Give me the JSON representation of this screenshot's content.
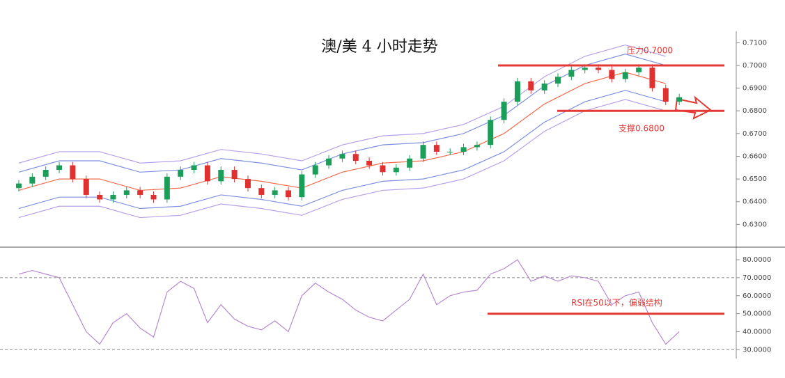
{
  "chart_data": [
    {
      "type": "candlestick",
      "title": "澳/美 4 小时走势",
      "open": [
        0.646,
        0.648,
        0.651,
        0.654,
        0.656,
        0.65,
        0.643,
        0.641,
        0.643,
        0.645,
        0.643,
        0.641,
        0.651,
        0.654,
        0.656,
        0.649,
        0.654,
        0.65,
        0.646,
        0.643,
        0.645,
        0.642,
        0.652,
        0.656,
        0.659,
        0.661,
        0.658,
        0.656,
        0.653,
        0.655,
        0.659,
        0.665,
        0.662,
        0.662,
        0.664,
        0.665,
        0.676,
        0.684,
        0.693,
        0.689,
        0.692,
        0.695,
        0.698,
        0.699,
        0.698,
        0.694,
        0.697,
        0.699,
        0.69,
        0.684
      ],
      "high": [
        0.6495,
        0.6525,
        0.6555,
        0.6575,
        0.6575,
        0.6515,
        0.6445,
        0.6445,
        0.6465,
        0.6465,
        0.6445,
        0.6525,
        0.6555,
        0.6575,
        0.6575,
        0.6555,
        0.6555,
        0.6515,
        0.6475,
        0.6465,
        0.6465,
        0.6535,
        0.6575,
        0.6605,
        0.6625,
        0.6625,
        0.6595,
        0.6575,
        0.6565,
        0.6605,
        0.6665,
        0.6665,
        0.6635,
        0.6655,
        0.6665,
        0.6775,
        0.6855,
        0.6945,
        0.6945,
        0.6935,
        0.6965,
        0.6995,
        0.7005,
        0.7005,
        0.6995,
        0.6985,
        0.7005,
        0.7005,
        0.6915,
        0.6875
      ],
      "low": [
        0.6445,
        0.6465,
        0.6495,
        0.6525,
        0.6485,
        0.6415,
        0.6395,
        0.6395,
        0.6415,
        0.6415,
        0.6395,
        0.6395,
        0.6495,
        0.6525,
        0.6475,
        0.6475,
        0.6485,
        0.6445,
        0.6415,
        0.6415,
        0.6405,
        0.6405,
        0.6505,
        0.6545,
        0.6575,
        0.6565,
        0.6545,
        0.6515,
        0.6515,
        0.6535,
        0.6575,
        0.6605,
        0.6605,
        0.6605,
        0.6625,
        0.6635,
        0.6745,
        0.6825,
        0.6875,
        0.6875,
        0.6905,
        0.6935,
        0.6965,
        0.6965,
        0.6925,
        0.6925,
        0.6955,
        0.6885,
        0.6825,
        0.6825
      ],
      "close": [
        0.648,
        0.651,
        0.654,
        0.656,
        0.65,
        0.643,
        0.641,
        0.643,
        0.645,
        0.643,
        0.641,
        0.651,
        0.654,
        0.656,
        0.649,
        0.654,
        0.65,
        0.646,
        0.643,
        0.645,
        0.642,
        0.652,
        0.656,
        0.659,
        0.661,
        0.658,
        0.656,
        0.653,
        0.655,
        0.659,
        0.665,
        0.662,
        0.662,
        0.664,
        0.665,
        0.676,
        0.684,
        0.693,
        0.689,
        0.692,
        0.695,
        0.698,
        0.699,
        0.698,
        0.694,
        0.697,
        0.699,
        0.69,
        0.684,
        0.686
      ],
      "up_color": "#1a9e5a",
      "down_color": "#e03030",
      "bands": {
        "x": [
          0,
          3,
          6,
          9,
          12,
          15,
          18,
          21,
          24,
          27,
          30,
          33,
          36,
          39,
          42,
          45,
          48
        ],
        "series": [
          {
            "color": "#b7a0e8",
            "values": [
              0.657,
              0.662,
              0.662,
              0.657,
              0.658,
              0.663,
              0.661,
              0.658,
              0.665,
              0.669,
              0.67,
              0.674,
              0.682,
              0.695,
              0.704,
              0.709,
              0.704
            ]
          },
          {
            "color": "#7f8fe0",
            "values": [
              0.653,
              0.658,
              0.658,
              0.653,
              0.654,
              0.659,
              0.657,
              0.654,
              0.661,
              0.665,
              0.666,
              0.67,
              0.678,
              0.691,
              0.7,
              0.705,
              0.7
            ]
          },
          {
            "color": "#ef6a4a",
            "values": [
              0.645,
              0.65,
              0.65,
              0.645,
              0.646,
              0.651,
              0.649,
              0.646,
              0.653,
              0.657,
              0.658,
              0.662,
              0.67,
              0.683,
              0.692,
              0.697,
              0.692
            ]
          },
          {
            "color": "#7f8fe0",
            "values": [
              0.637,
              0.642,
              0.642,
              0.637,
              0.638,
              0.643,
              0.641,
              0.638,
              0.645,
              0.649,
              0.65,
              0.654,
              0.662,
              0.675,
              0.684,
              0.689,
              0.684
            ]
          },
          {
            "color": "#b7a0e8",
            "values": [
              0.633,
              0.638,
              0.638,
              0.633,
              0.634,
              0.639,
              0.637,
              0.634,
              0.641,
              0.645,
              0.646,
              0.65,
              0.658,
              0.671,
              0.68,
              0.685,
              0.68
            ]
          }
        ]
      },
      "ylim": [
        0.62,
        0.715
      ],
      "yticks": [
        {
          "value": 0.63,
          "label": "0.6300"
        },
        {
          "value": 0.64,
          "label": "0.6400"
        },
        {
          "value": 0.65,
          "label": "0.6500"
        },
        {
          "value": 0.66,
          "label": "0.6600"
        },
        {
          "value": 0.67,
          "label": "0.6700"
        },
        {
          "value": 0.68,
          "label": "0.6800"
        },
        {
          "value": 0.69,
          "label": "0.6900"
        },
        {
          "value": 0.7,
          "label": "0.7000"
        },
        {
          "value": 0.71,
          "label": "0.7100"
        }
      ],
      "annotations": [
        {
          "text": "压力0.7000",
          "value": 0.7,
          "color": "#e53935"
        },
        {
          "text": "支撑0.6800",
          "value": 0.68,
          "color": "#e53935"
        }
      ]
    },
    {
      "type": "line",
      "color": "#b58ad0",
      "values": [
        72,
        74,
        72,
        70,
        55,
        40,
        33,
        45,
        50,
        42,
        37,
        62,
        68,
        64,
        45,
        55,
        47,
        43,
        41,
        46,
        40,
        60,
        67,
        62,
        58,
        52,
        48,
        46,
        52,
        58,
        72,
        55,
        60,
        62,
        63,
        72,
        75,
        80,
        68,
        71,
        68,
        71,
        70,
        68,
        55,
        60,
        62,
        45,
        33,
        40
      ],
      "ylim": [
        27,
        87
      ],
      "yticks": [
        {
          "value": 30,
          "label": "30.0000"
        },
        {
          "value": 40,
          "label": "40.0000"
        },
        {
          "value": 50,
          "label": "50.0000"
        },
        {
          "value": 60,
          "label": "60.0000"
        },
        {
          "value": 70,
          "label": "70.0000"
        },
        {
          "value": 80,
          "label": "80.0000"
        }
      ],
      "reference_lines": [
        70,
        30
      ],
      "annotations": [
        {
          "text": "RSI在50以下，偏弱结构",
          "value": 50,
          "color": "#e53935"
        }
      ]
    }
  ]
}
